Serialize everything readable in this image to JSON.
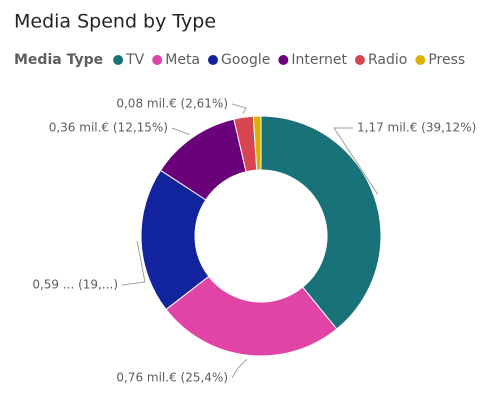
{
  "chart_data": {
    "type": "donut",
    "title": "Media Spend by Type",
    "legend_title": "Media Type",
    "categories": [
      "TV",
      "Meta",
      "Google",
      "Internet",
      "Radio",
      "Press"
    ],
    "values": [
      39.12,
      25.4,
      19.7,
      12.15,
      2.61,
      1.02
    ],
    "value_labels": [
      "1,17 mil.€ (39,12%)",
      "0,76 mil.€ (25,4%)",
      "0,59 ... (19,...)",
      "0,36 mil.€ (12,15%)",
      "0,08 mil.€ (2,61%)",
      null
    ],
    "colors": [
      "#197278",
      "#E044A7",
      "#12239E",
      "#6B007B",
      "#D64550",
      "#D9B300"
    ],
    "legend": "top-left"
  }
}
